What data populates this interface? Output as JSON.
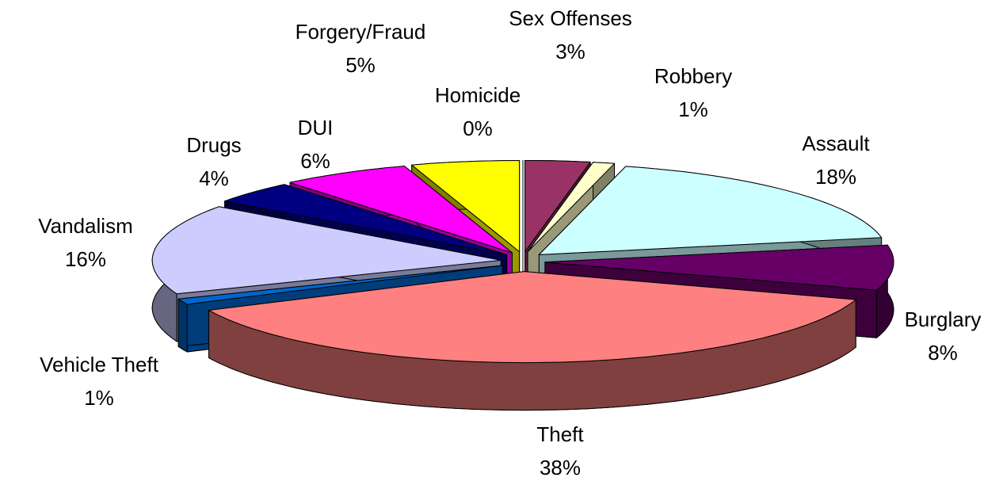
{
  "chart_data": {
    "type": "pie",
    "categories": [
      "Sex Offenses",
      "Robbery",
      "Assault",
      "Burglary",
      "Theft",
      "Vehicle Theft",
      "Vandalism",
      "Drugs",
      "DUI",
      "Forgery/Fraud",
      "Homicide"
    ],
    "values": [
      3,
      1,
      18,
      8,
      38,
      1,
      16,
      4,
      6,
      5,
      0
    ],
    "value_labels": [
      "3%",
      "1%",
      "18%",
      "8%",
      "38%",
      "1%",
      "16%",
      "4%",
      "6%",
      "5%",
      "0%"
    ],
    "colors": [
      "#993366",
      "#ffffcc",
      "#ccffff",
      "#660066",
      "#ff8080",
      "#0066cc",
      "#ccccff",
      "#000080",
      "#ff00ff",
      "#ffff00",
      "#ffffff"
    ]
  }
}
